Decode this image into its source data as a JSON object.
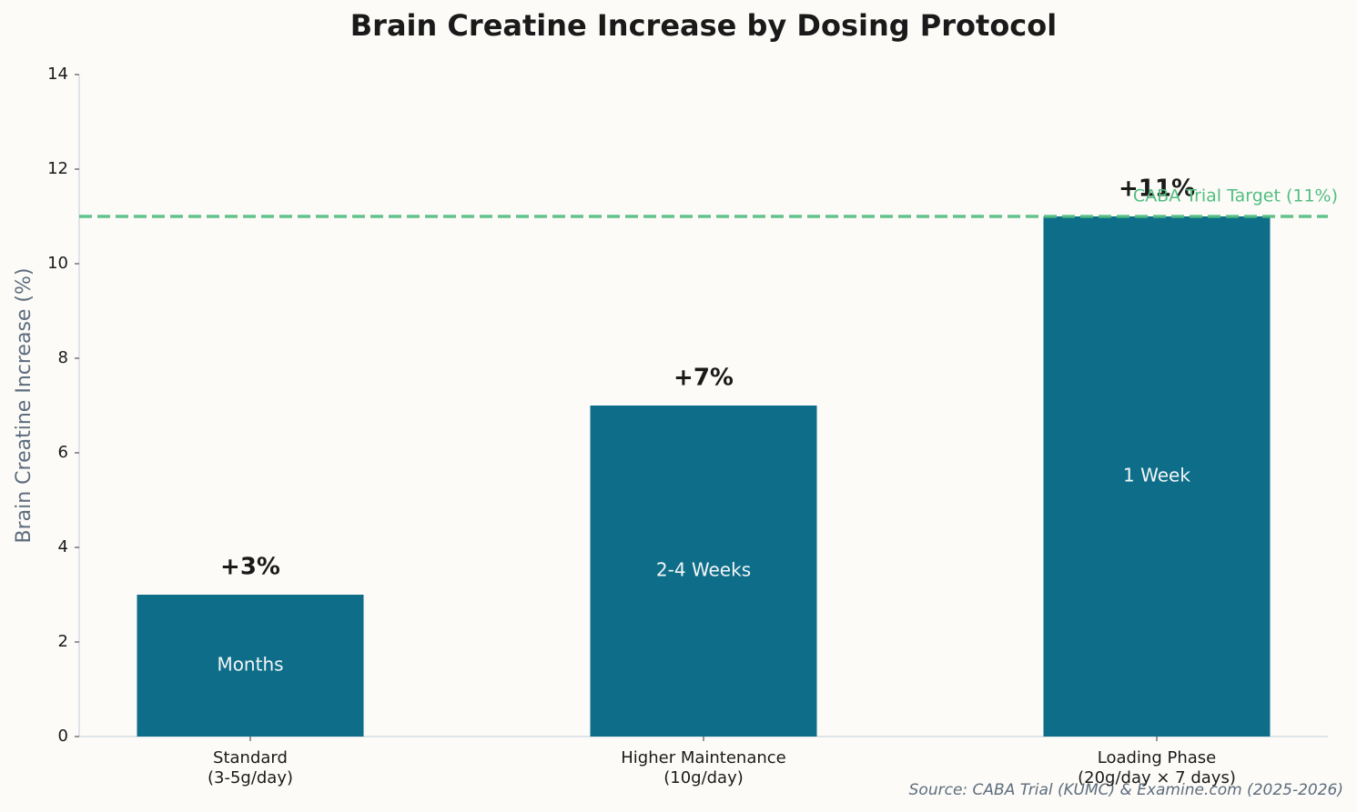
{
  "chart_data": {
    "type": "bar",
    "title": "Brain Creatine Increase by Dosing Protocol",
    "ylabel": "Brain Creatine Increase (%)",
    "categories": [
      "Standard\n(3-5g/day)",
      "Higher Maintenance\n(10g/day)",
      "Loading Phase\n(20g/day × 7 days)"
    ],
    "values": [
      3,
      7,
      11
    ],
    "value_labels": [
      "+3%",
      "+7%",
      "+11%"
    ],
    "bar_annotations": [
      "Months",
      "2-4 Weeks",
      "1 Week"
    ],
    "color": "#0e6e8a",
    "ylim": [
      0,
      14
    ],
    "yticks": [
      0,
      2,
      4,
      6,
      8,
      10,
      12,
      14
    ],
    "grid": false,
    "reference_line": {
      "value": 11,
      "label": "CABA Trial Target (11%)",
      "color": "#52be80"
    },
    "source": "Source: CABA Trial (KUMC) & Examine.com (2025-2026)"
  }
}
